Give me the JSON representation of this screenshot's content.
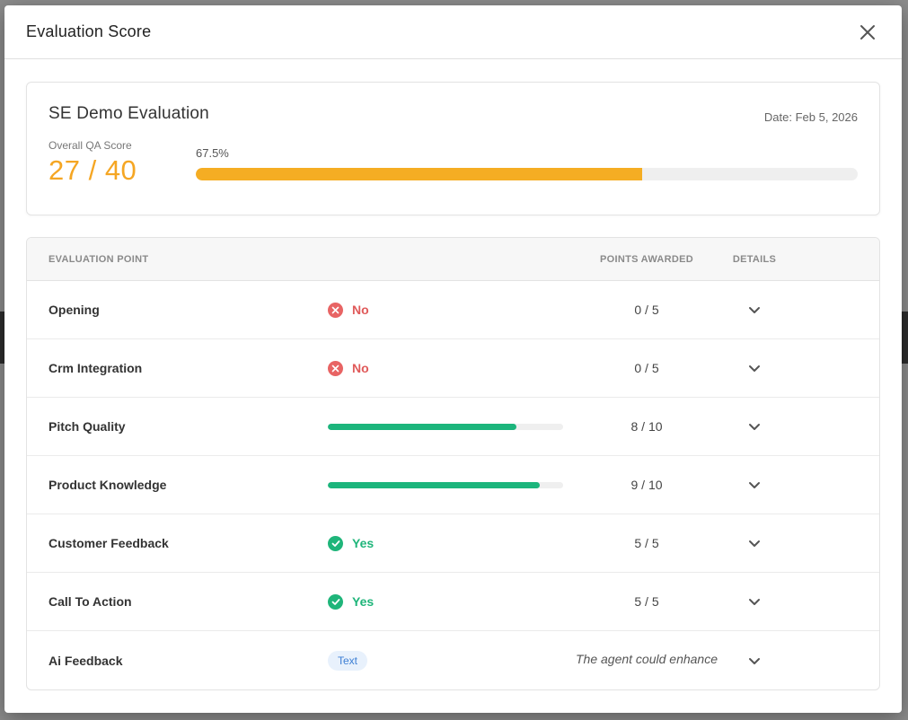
{
  "modal": {
    "title": "Evaluation Score"
  },
  "summary": {
    "name": "SE Demo Evaluation",
    "date": "Date: Feb 5, 2026",
    "score_label": "Overall QA Score",
    "score_value": "27 / 40",
    "percent_text": "67.5%",
    "percent": 67.5
  },
  "table": {
    "headers": {
      "point": "EVALUATION POINT",
      "points_awarded": "POINTS AWARDED",
      "details": "DETAILS"
    },
    "rows": [
      {
        "label": "Opening",
        "result_type": "no",
        "result_text": "No",
        "points": "0 / 5"
      },
      {
        "label": "Crm Integration",
        "result_type": "no",
        "result_text": "No",
        "points": "0 / 5"
      },
      {
        "label": "Pitch Quality",
        "result_type": "bar",
        "fraction": 0.8,
        "points": "8 / 10"
      },
      {
        "label": "Product Knowledge",
        "result_type": "bar",
        "fraction": 0.9,
        "points": "9 / 10"
      },
      {
        "label": "Customer Feedback",
        "result_type": "yes",
        "result_text": "Yes",
        "points": "5 / 5"
      },
      {
        "label": "Call To Action",
        "result_type": "yes",
        "result_text": "Yes",
        "points": "5 / 5"
      },
      {
        "label": "Ai Feedback",
        "result_type": "chip",
        "result_text": "Text",
        "points": "The agent could enhance"
      }
    ]
  },
  "colors": {
    "score": "#f5a623",
    "progress": "#f5ad23",
    "no": "#e05a5a",
    "yes": "#1fb57a",
    "bar": "#1cb57c",
    "chip_bg": "#e8f1fc",
    "chip_text": "#3d7fd4"
  },
  "icons": {
    "close": "close-icon",
    "no": "x-circle-icon",
    "yes": "check-circle-icon",
    "expand": "chevron-down-icon"
  }
}
